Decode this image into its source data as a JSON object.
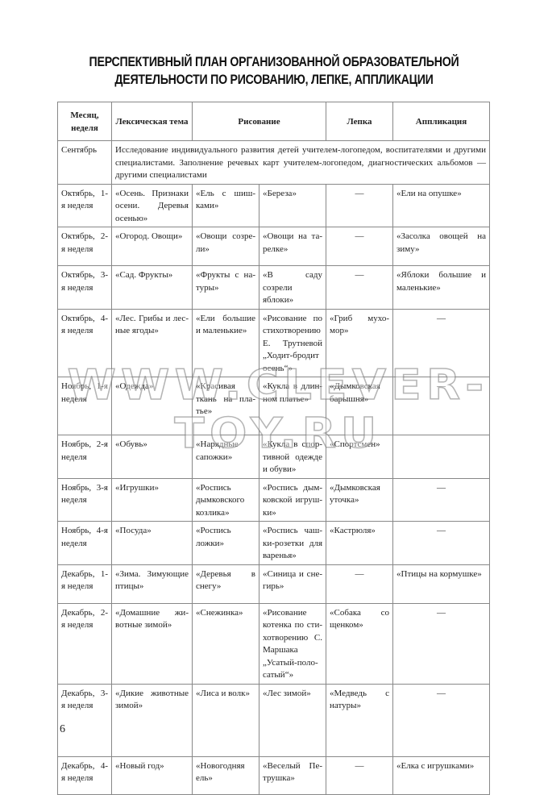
{
  "title_lines": [
    "ПЕРСПЕКТИВНЫЙ ПЛАН ОРГАНИЗОВАННОЙ ОБРАЗОВАТЕЛЬНОЙ",
    "ДЕЯТЕЛЬНОСТИ ПО РИСОВАНИЮ, ЛЕПКЕ, АППЛИКАЦИИ"
  ],
  "headers": [
    "Месяц, неделя",
    "Лексическая тема",
    "Рисование",
    "Лепка",
    "Аппликация"
  ],
  "september": {
    "month": "Сентябрь",
    "text": "Исследование индивидуального развития детей учителем-логопедом, воспитателями и другими специалистами. Заполнение речевых карт учителем-логопедом, диагностических альбомов — другими специалистами"
  },
  "rows": [
    [
      "Октябрь, 1-я неделя",
      "«Осень. Признаки осени. Деревья осенью»",
      "«Ель с шиш­ками»",
      "«Береза»",
      "—",
      "«Ели на опушке»"
    ],
    [
      "Октябрь, 2-я неделя",
      "«Огород. Овощи»",
      "«Овощи созре­ли»",
      "«Овощи на та­релке»",
      "—",
      "«Засолка овощей на зиму»"
    ],
    [
      "Октябрь, 3-я неделя",
      "«Сад. Фрукты»",
      "«Фрукты с на­туры»",
      "«В саду созрели яблоки»",
      "—",
      "«Яблоки большие и маленькие»"
    ],
    [
      "Октябрь, 4-я неделя",
      "«Лес. Грибы и лес­ные ягоды»",
      "«Ели большие и маленькие»",
      "«Рисование по стихотворению Е. Трутневой „Ходит-бродит осень“»",
      "«Гриб мухо­мор»",
      "—"
    ],
    [
      "Ноябрь, 1-я неделя",
      "«Одежда»",
      "«Красивая ткань на пла­тье»",
      "«Кукла в длин­ном платье»",
      "«Дымковская барышня»",
      "—"
    ],
    [
      "Ноябрь, 2-я неделя",
      "«Обувь»",
      "«Нарядные сапожки»",
      "«Кукла в спор­тивной одежде и обуви»",
      "«Спортсмен»",
      ""
    ],
    [
      "Ноябрь, 3-я неделя",
      "«Игрушки»",
      "«Роспись дымковского козлика»",
      "«Роспись дым­ковской игруш­ки»",
      "«Дымковская уточка»",
      "—"
    ],
    [
      "Ноябрь, 4-я неделя",
      "«Посуда»",
      "«Роспись ложки»",
      "«Роспись чаш­ки-розетки для варенья»",
      "«Кастрюля»",
      "—"
    ],
    [
      "Декабрь, 1-я неделя",
      "«Зима. Зимующие птицы»",
      "«Деревья в снегу»",
      "«Синица и сне­гирь»",
      "—",
      "«Птицы на кор­мушке»"
    ],
    [
      "Декабрь, 2-я неделя",
      "«Домашние жи­вотные зимой»",
      "«Снежинка»",
      "«Рисование котенка по сти­хотворению С. Маршака „Усатый-поло­сатый“»",
      "«Собака со щенком»",
      "—"
    ],
    [
      "Декабрь, 3-я неделя",
      "«Дикие животные зимой»",
      "«Лиса и волк»",
      "«Лес зимой»",
      "«Медведь с натуры»",
      "—"
    ],
    [
      "Декабрь, 4-я неделя",
      "«Новый год»",
      "«Новогодняя ель»",
      "«Веселый Пе­трушка»",
      "—",
      "«Елка с игрушка­ми»"
    ]
  ],
  "watermark": "WWW.CLEVER-TOY.RU",
  "page_number": "6"
}
